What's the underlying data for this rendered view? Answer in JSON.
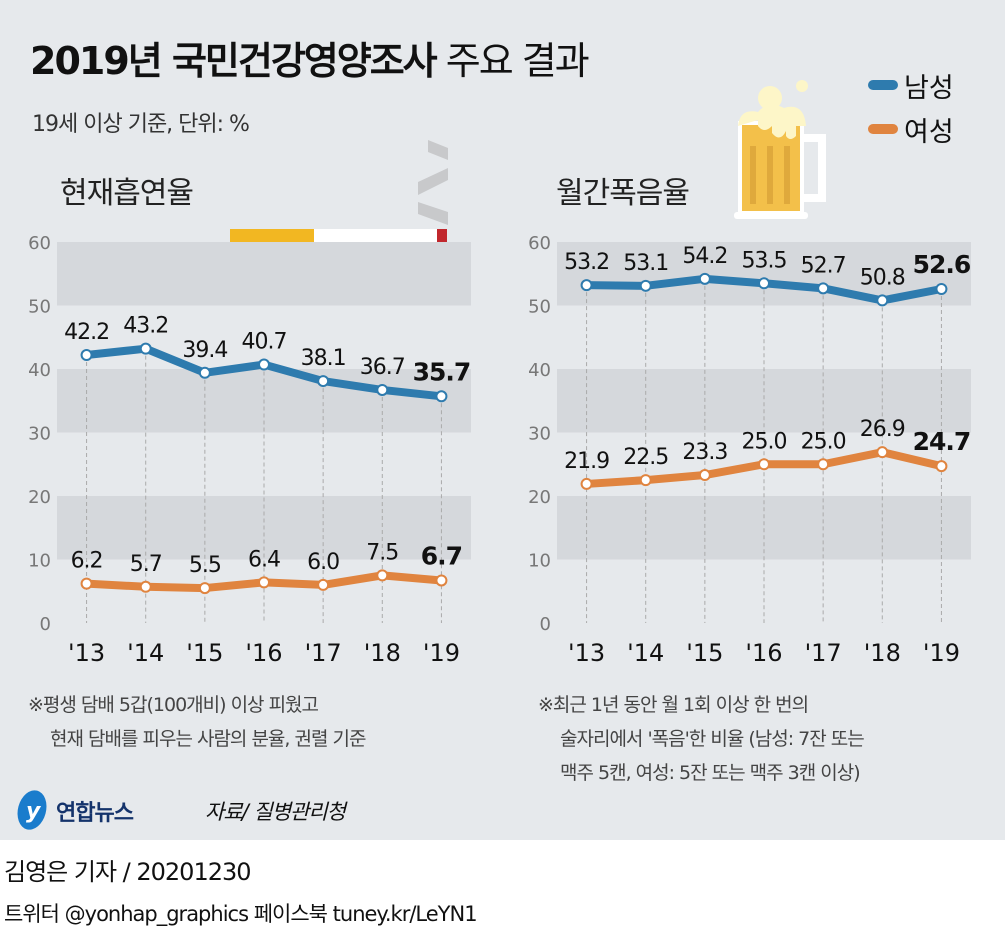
{
  "title_bold": "2019년 국민건강영양조사",
  "title_rest": "주요 결과",
  "subtitle": "19세 이상 기준, 단위: %",
  "legend": [
    {
      "name": "남성",
      "color": "#2e7bae"
    },
    {
      "name": "여성",
      "color": "#e0843f"
    }
  ],
  "chart_data": [
    {
      "type": "line",
      "title": "현재흡연율",
      "categories": [
        "'13",
        "'14",
        "'15",
        "'16",
        "'17",
        "'18",
        "'19"
      ],
      "ylim": [
        0,
        60
      ],
      "yticks": [
        0,
        10,
        20,
        30,
        40,
        50,
        60
      ],
      "series": [
        {
          "name": "남성",
          "values": [
            42.2,
            43.2,
            39.4,
            40.7,
            38.1,
            36.7,
            35.7
          ]
        },
        {
          "name": "여성",
          "values": [
            6.2,
            5.7,
            5.5,
            6.4,
            6.0,
            7.5,
            6.7
          ]
        }
      ]
    },
    {
      "type": "line",
      "title": "월간폭음율",
      "categories": [
        "'13",
        "'14",
        "'15",
        "'16",
        "'17",
        "'18",
        "'19"
      ],
      "ylim": [
        0,
        60
      ],
      "yticks": [
        0,
        10,
        20,
        30,
        40,
        50,
        60
      ],
      "series": [
        {
          "name": "남성",
          "values": [
            53.2,
            53.1,
            54.2,
            53.5,
            52.7,
            50.8,
            52.6
          ]
        },
        {
          "name": "여성",
          "values": [
            21.9,
            22.5,
            23.3,
            25.0,
            25.0,
            26.9,
            24.7
          ]
        }
      ]
    }
  ],
  "notes": {
    "left": [
      "※평생 담배 5갑(100개비) 이상 피웠고",
      "현재 담배를 피우는 사람의 분율, 권렬 기준"
    ],
    "right": [
      "※최근 1년 동안 월 1회 이상 한 번의",
      "술자리에서 '폭음'한 비율 (남성: 7잔 또는",
      "맥주 5캔, 여성: 5잔 또는 맥주 3캔 이상)"
    ]
  },
  "logo": "연합뉴스",
  "source": "자료/ 질병관리청",
  "byline": "김영은 기자 / 20201230",
  "social": "트위터 @yonhap_graphics  페이스북 tuney.kr/LeYN1"
}
